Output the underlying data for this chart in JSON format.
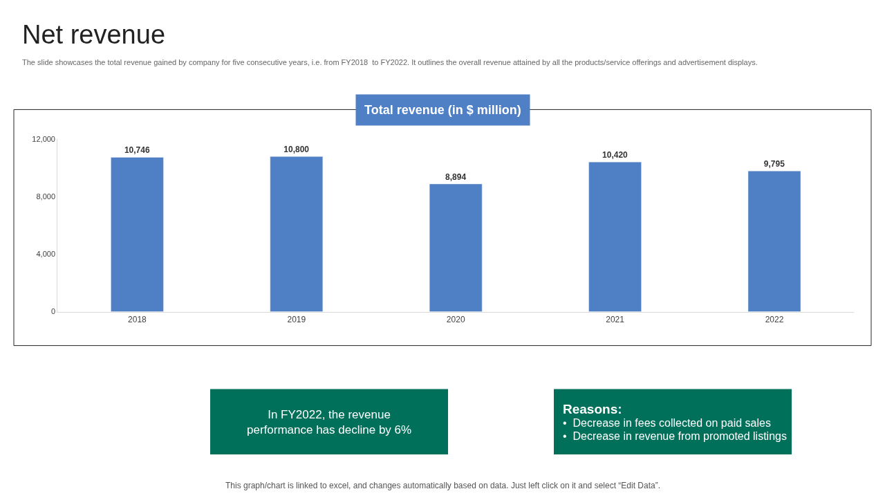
{
  "chart_data": {
    "type": "bar",
    "title": "Net revenue",
    "subtitle": "The slide showcases the total revenue gained by company for five consecutive years, i.e. from FY2018  to FY2022. It outlines the overall revenue attained by all the products/service offerings and advertisement displays.",
    "xlabel": "Total revenue (in $ million)",
    "categories": [
      "2018",
      "2019",
      "2020",
      "2021",
      "2022"
    ],
    "values": [
      10746,
      10800,
      8894,
      10420,
      9795
    ],
    "color": "#4f7fc4",
    "ylim": [
      0,
      12000
    ],
    "yticks": [
      {
        "value": 0,
        "label": "0"
      },
      {
        "value": 4000,
        "label": "4,000"
      },
      {
        "value": 8000,
        "label": "8,000"
      },
      {
        "value": 12000,
        "label": "12,000"
      }
    ],
    "value_labels": [
      "10,746",
      "10,800",
      "8,894",
      "10,420",
      "9,795"
    ],
    "grid": false,
    "annotations": [
      "In FY2022, the revenue performance has decline by 6%",
      "Reasons:",
      "•  Decrease in fees collected on paid sales",
      "•  Decrease in revenue from promoted listings",
      "This graph/chart is linked to excel, and changes automatically based on data. Just left click on it and select “Edit Data”."
    ]
  }
}
